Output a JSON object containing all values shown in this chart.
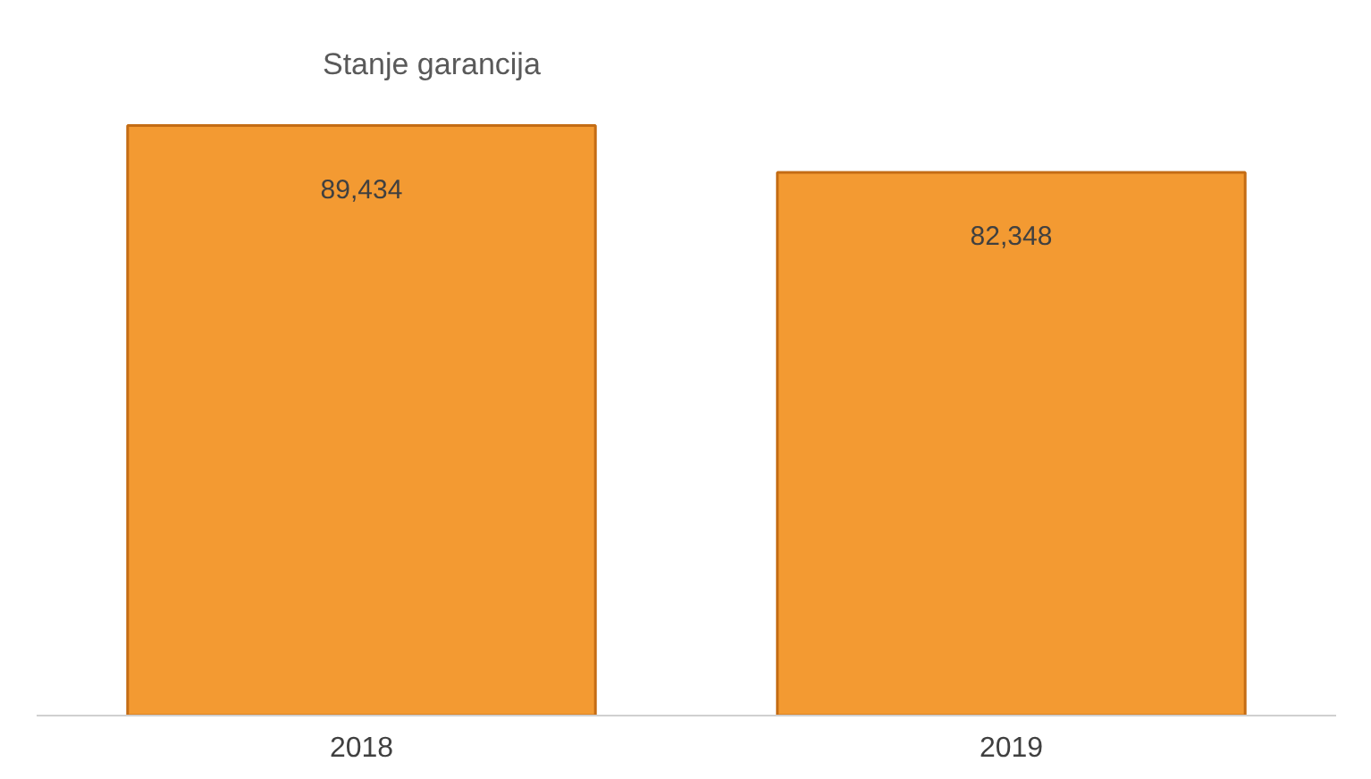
{
  "chart_data": {
    "type": "bar",
    "title": "Stanje garancija",
    "categories": [
      "2018",
      "2019"
    ],
    "values": [
      89434,
      82348
    ],
    "color": "#f39a32",
    "data_labels": true,
    "value_labels": [
      "89,434",
      "82,348"
    ],
    "tick_labels": "x"
  }
}
